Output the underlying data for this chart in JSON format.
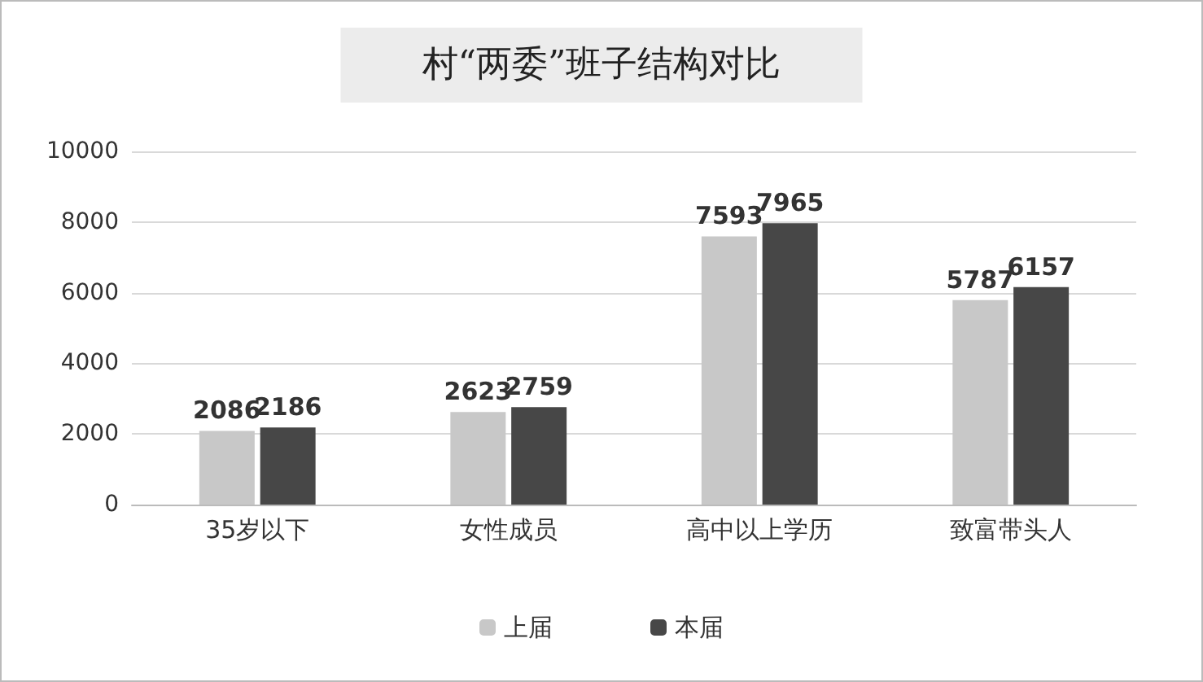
{
  "chart_data": {
    "type": "bar",
    "title": "村“两委”班子结构对比",
    "categories": [
      "35岁以下",
      "女性成员",
      "高中以上学历",
      "致富带头人"
    ],
    "series": [
      {
        "name": "上届",
        "color": "#c8c8c8",
        "values": [
          2086,
          2623,
          7593,
          5787
        ]
      },
      {
        "name": "本届",
        "color": "#474747",
        "values": [
          2186,
          2759,
          7965,
          6157
        ]
      }
    ],
    "ylim": [
      0,
      10000
    ],
    "yticks": [
      0,
      2000,
      4000,
      6000,
      8000,
      10000
    ],
    "grid": "y",
    "legend": "bottom",
    "data_labels": true
  }
}
